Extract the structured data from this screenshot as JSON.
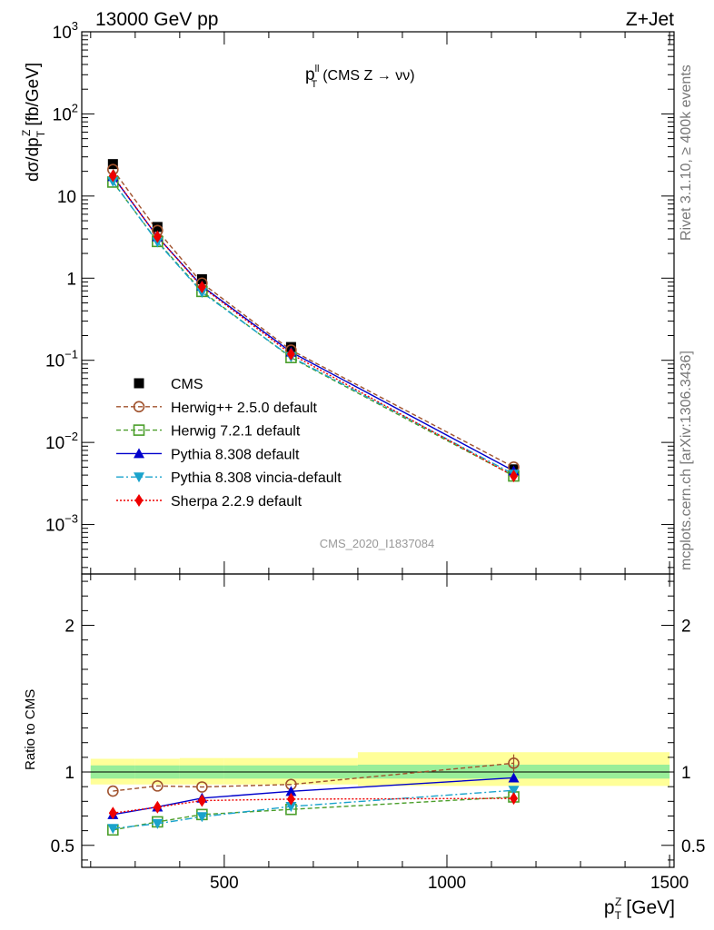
{
  "header": {
    "energy_label": "13000 GeV pp",
    "process_label": "Z+Jet",
    "side_label_top": "Rivet 3.1.10, ≥ 400k events",
    "side_label_bottom": "mcplots.cern.ch [arXiv:1306.3436]",
    "analysis_id": "CMS_2020_I1837084"
  },
  "chart_data": [
    {
      "type": "scatter",
      "panel": "main",
      "title_main": "p",
      "title_sup": "ll",
      "title_sub": "T",
      "title_rest": "(CMS Z → νν)",
      "ylabel": "dσ/dp",
      "ylabel_sub": "T",
      "ylabel_sup": "Z",
      "ylabel_unit": "[fb/GeV]",
      "yscale": "log",
      "ylim": [
        0.00025,
        1000
      ],
      "xlim": [
        180,
        1510
      ],
      "y_ticks": [
        {
          "value": 1000,
          "base": "10",
          "exp": "3"
        },
        {
          "value": 100,
          "base": "10",
          "exp": "2"
        },
        {
          "value": 10,
          "base": "10",
          "exp": ""
        },
        {
          "value": 1,
          "base": "1",
          "exp": ""
        },
        {
          "value": 0.1,
          "base": "10",
          "exp": "−1"
        },
        {
          "value": 0.01,
          "base": "10",
          "exp": "−2"
        },
        {
          "value": 0.001,
          "base": "10",
          "exp": "−3"
        }
      ],
      "legend_position": "lower-left",
      "x": [
        250,
        350,
        450,
        650,
        1150
      ],
      "series": [
        {
          "name": "CMS",
          "values": [
            24.5,
            4.2,
            0.97,
            0.145,
            0.0047
          ],
          "color": "#000000",
          "marker": "square",
          "dash": "none"
        },
        {
          "name": "Herwig++ 2.5.0 default",
          "values": [
            21.0,
            3.8,
            0.87,
            0.133,
            0.005
          ],
          "color": "#a0522d",
          "marker": "circle-open",
          "dash": "5,3"
        },
        {
          "name": "Herwig 7.2.1 default",
          "values": [
            14.8,
            2.8,
            0.69,
            0.108,
            0.0039
          ],
          "color": "#4a9e2a",
          "marker": "square-open",
          "dash": "5,3"
        },
        {
          "name": "Pythia 8.308 default",
          "values": [
            17.3,
            3.2,
            0.8,
            0.126,
            0.0045
          ],
          "color": "#0000cc",
          "marker": "triangle-up",
          "dash": "none"
        },
        {
          "name": "Pythia 8.308 vincia-default",
          "values": [
            15.0,
            2.75,
            0.67,
            0.11,
            0.0041
          ],
          "color": "#1aa3cc",
          "marker": "triangle-down",
          "dash": "8,3,2,3"
        },
        {
          "name": "Sherpa 2.2.9 default",
          "values": [
            17.6,
            3.2,
            0.78,
            0.119,
            0.0039
          ],
          "color": "#ee0000",
          "marker": "diamond",
          "dash": "2,2"
        }
      ]
    },
    {
      "type": "scatter",
      "panel": "ratio",
      "ylabel": "Ratio to CMS",
      "xlabel": "p",
      "xlabel_sub": "T",
      "xlabel_sup": "Z",
      "xlabel_unit": "[GeV]",
      "ylim": [
        0.35,
        2.35
      ],
      "xlim": [
        180,
        1510
      ],
      "x_ticks": [
        {
          "value": 500,
          "label": "500"
        },
        {
          "value": 1000,
          "label": "1000"
        },
        {
          "value": 1500,
          "label": "1500"
        }
      ],
      "y_ticks": [
        {
          "value": 0.5,
          "label": "0.5"
        },
        {
          "value": 1,
          "label": "1"
        },
        {
          "value": 2,
          "label": "2"
        }
      ],
      "uncertainty_bands": [
        {
          "x": [
            200,
            300
          ],
          "stat": [
            0.955,
            1.045
          ],
          "total": [
            0.915,
            1.09
          ]
        },
        {
          "x": [
            300,
            400
          ],
          "stat": [
            0.955,
            1.045
          ],
          "total": [
            0.915,
            1.09
          ]
        },
        {
          "x": [
            400,
            500
          ],
          "stat": [
            0.955,
            1.045
          ],
          "total": [
            0.915,
            1.095
          ]
        },
        {
          "x": [
            500,
            800
          ],
          "stat": [
            0.955,
            1.045
          ],
          "total": [
            0.915,
            1.095
          ]
        },
        {
          "x": [
            800,
            1500
          ],
          "stat": [
            0.955,
            1.05
          ],
          "total": [
            0.905,
            1.135
          ]
        }
      ],
      "x": [
        250,
        350,
        450,
        650,
        1150
      ],
      "series": [
        {
          "name": "Herwig++ 2.5.0 default",
          "values": [
            0.87,
            0.905,
            0.898,
            0.915,
            1.06
          ],
          "errors": [
            0,
            0,
            0,
            0,
            0.06
          ],
          "color": "#a0522d",
          "marker": "circle-open",
          "dash": "5,3"
        },
        {
          "name": "Herwig 7.2.1 default",
          "values": [
            0.605,
            0.66,
            0.71,
            0.745,
            0.83
          ],
          "errors": [
            0,
            0,
            0,
            0,
            0.02
          ],
          "color": "#4a9e2a",
          "marker": "square-open",
          "dash": "5,3"
        },
        {
          "name": "Pythia 8.308 default",
          "values": [
            0.71,
            0.762,
            0.822,
            0.868,
            0.96
          ],
          "errors": [
            0,
            0,
            0,
            0,
            0.02
          ],
          "color": "#0000cc",
          "marker": "triangle-up",
          "dash": "none"
        },
        {
          "name": "Pythia 8.308 vincia-default",
          "values": [
            0.615,
            0.648,
            0.695,
            0.765,
            0.875
          ],
          "errors": [
            0,
            0,
            0,
            0,
            0.02
          ],
          "color": "#1aa3cc",
          "marker": "triangle-down",
          "dash": "8,3,2,3"
        },
        {
          "name": "Sherpa 2.2.9 default",
          "values": [
            0.72,
            0.76,
            0.805,
            0.815,
            0.82
          ],
          "errors": [
            0,
            0,
            0,
            0,
            0.025
          ],
          "color": "#ee0000",
          "marker": "diamond",
          "dash": "2,2"
        }
      ]
    }
  ]
}
